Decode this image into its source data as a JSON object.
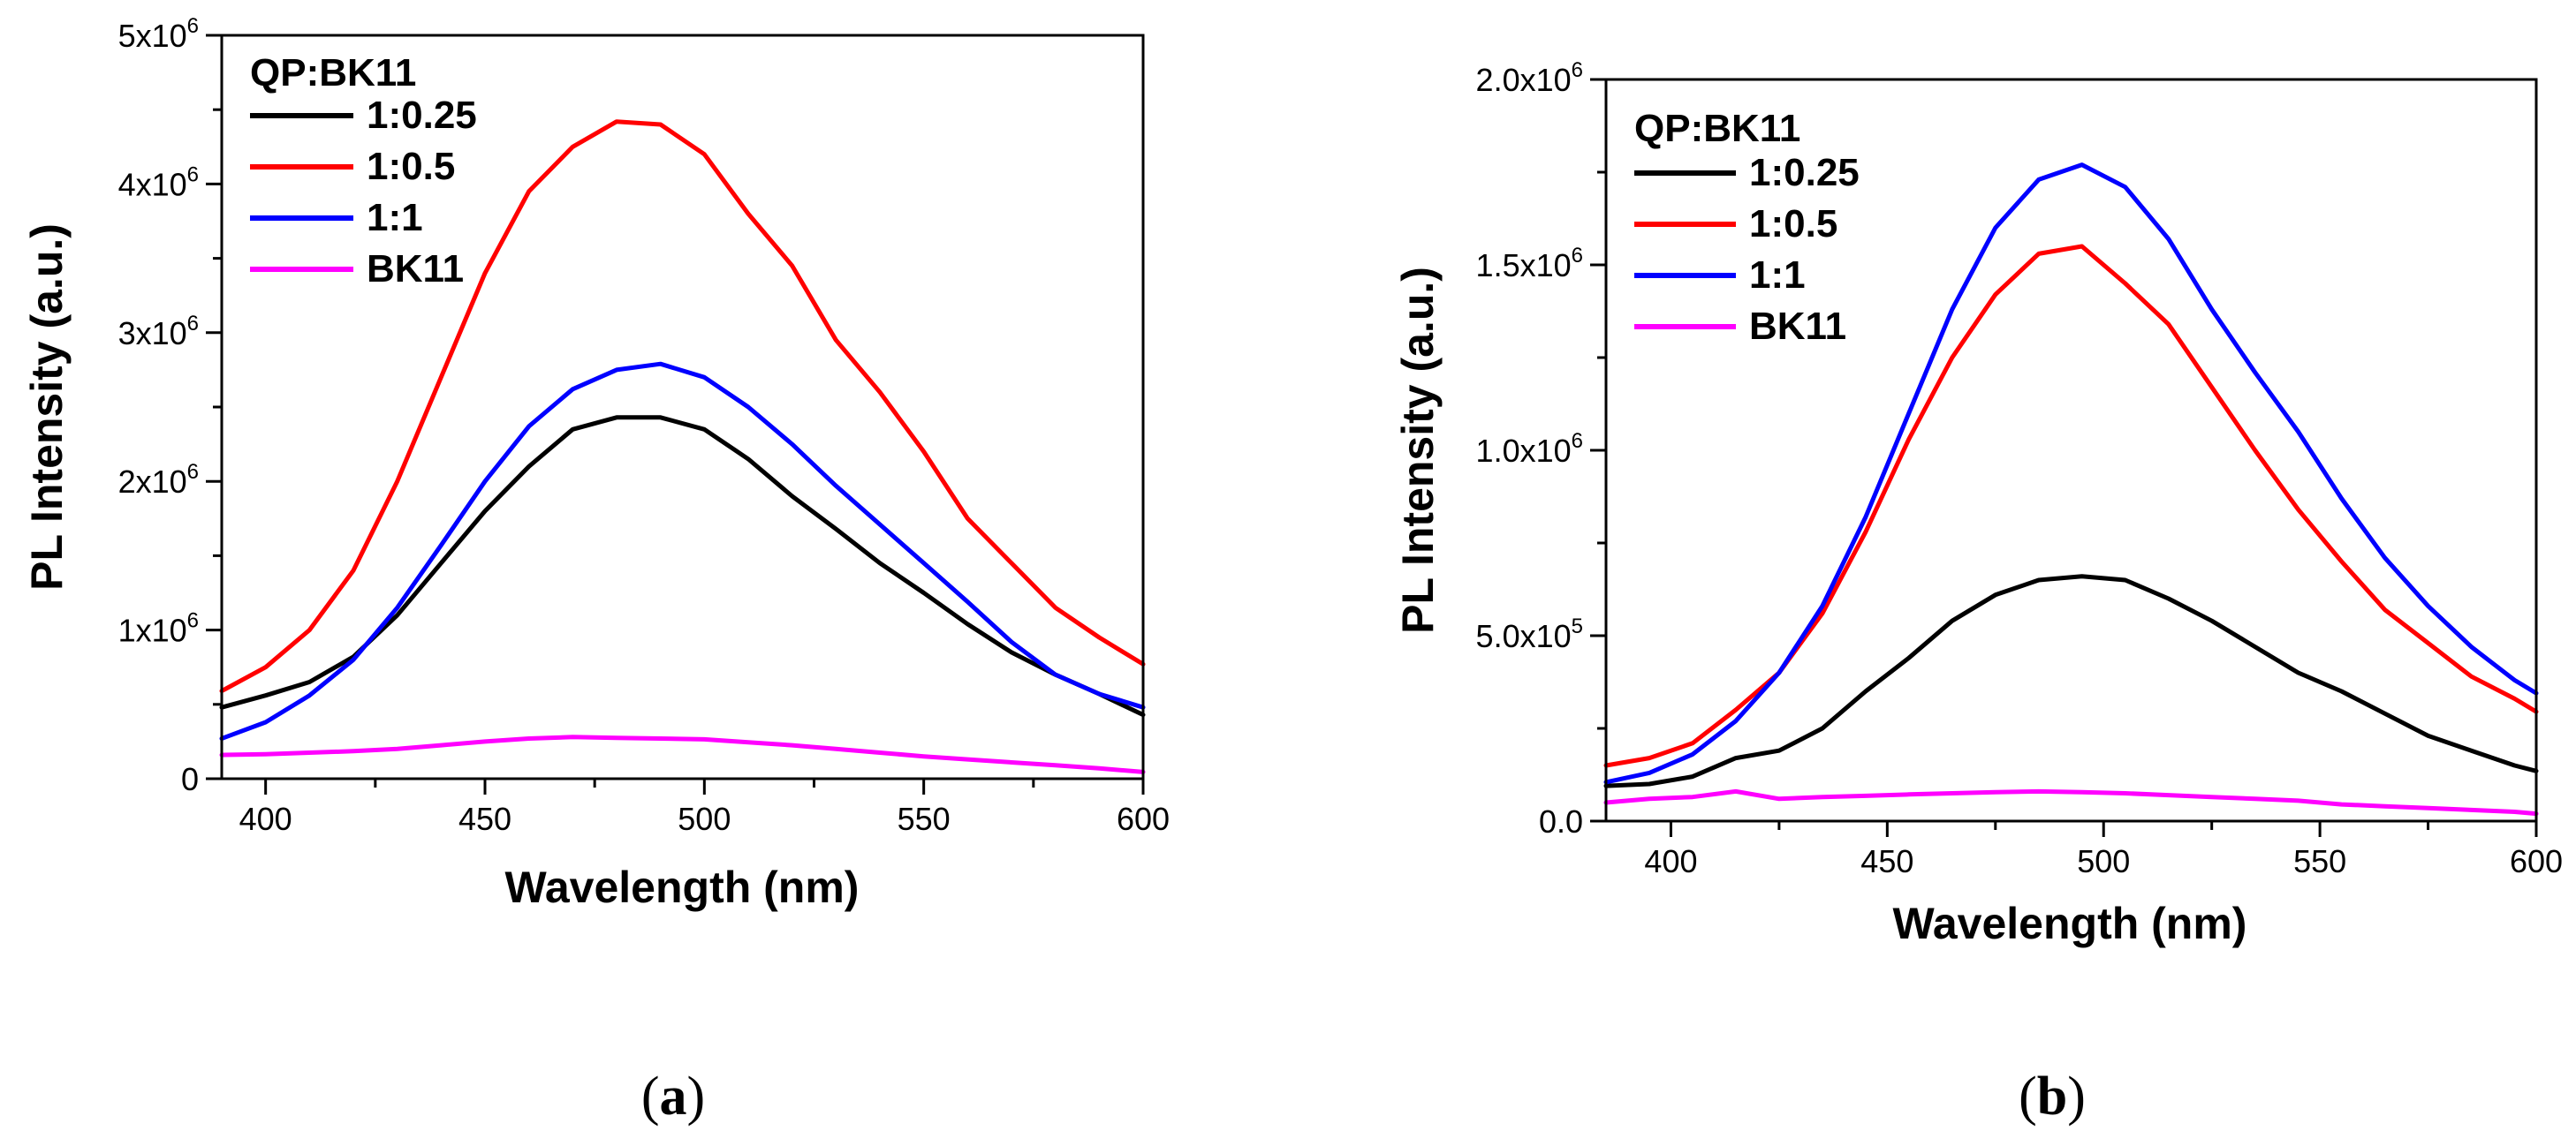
{
  "chart_data": [
    {
      "panel": "a",
      "caption_letter": "a",
      "type": "line",
      "xlabel": "Wavelength (nm)",
      "ylabel": "PL Intensity (a.u.)",
      "xlim": [
        390,
        600
      ],
      "ylim": [
        0,
        5000000
      ],
      "xticks": [
        400,
        450,
        500,
        550,
        600
      ],
      "yticks": [
        0,
        1000000,
        2000000,
        3000000,
        4000000,
        5000000
      ],
      "ytick_labels": [
        {
          "mant": "0",
          "exp": ""
        },
        {
          "mant": "1x10",
          "exp": "6"
        },
        {
          "mant": "2x10",
          "exp": "6"
        },
        {
          "mant": "3x10",
          "exp": "6"
        },
        {
          "mant": "4x10",
          "exp": "6"
        },
        {
          "mant": "5x10",
          "exp": "6"
        }
      ],
      "legend_title": "QP:BK11",
      "legend_position": "top-left",
      "series": [
        {
          "name": "1:0.25",
          "color": "#000000",
          "x": [
            390,
            400,
            410,
            420,
            430,
            440,
            450,
            460,
            470,
            480,
            490,
            500,
            510,
            520,
            530,
            540,
            550,
            560,
            570,
            580,
            590,
            600
          ],
          "y": [
            480000,
            560000,
            650000,
            820000,
            1100000,
            1450000,
            1800000,
            2100000,
            2350000,
            2430000,
            2430000,
            2350000,
            2150000,
            1900000,
            1680000,
            1450000,
            1250000,
            1040000,
            850000,
            700000,
            570000,
            430000
          ]
        },
        {
          "name": "1:0.5",
          "color": "#ff0000",
          "x": [
            390,
            400,
            410,
            420,
            430,
            440,
            450,
            460,
            470,
            480,
            490,
            500,
            510,
            520,
            530,
            540,
            550,
            560,
            570,
            580,
            590,
            600
          ],
          "y": [
            590000,
            750000,
            1000000,
            1400000,
            2000000,
            2700000,
            3400000,
            3950000,
            4250000,
            4420000,
            4400000,
            4200000,
            3800000,
            3450000,
            2950000,
            2600000,
            2200000,
            1750000,
            1450000,
            1150000,
            950000,
            770000
          ]
        },
        {
          "name": "1:1",
          "color": "#0000ff",
          "x": [
            390,
            400,
            410,
            420,
            430,
            440,
            450,
            460,
            470,
            480,
            490,
            500,
            510,
            520,
            530,
            540,
            550,
            560,
            570,
            580,
            590,
            600
          ],
          "y": [
            270000,
            380000,
            560000,
            800000,
            1150000,
            1570000,
            2000000,
            2370000,
            2620000,
            2750000,
            2790000,
            2700000,
            2500000,
            2250000,
            1970000,
            1710000,
            1450000,
            1190000,
            920000,
            700000,
            570000,
            480000
          ]
        },
        {
          "name": "BK11",
          "color": "#ff00ff",
          "x": [
            390,
            400,
            410,
            420,
            430,
            440,
            450,
            460,
            470,
            480,
            490,
            500,
            510,
            520,
            530,
            540,
            550,
            560,
            570,
            580,
            590,
            600
          ],
          "y": [
            160000,
            165000,
            175000,
            185000,
            200000,
            225000,
            250000,
            270000,
            280000,
            275000,
            270000,
            265000,
            245000,
            225000,
            200000,
            175000,
            150000,
            130000,
            110000,
            90000,
            70000,
            45000
          ]
        }
      ]
    },
    {
      "panel": "b",
      "caption_letter": "b",
      "type": "line",
      "xlabel": "Wavelength (nm)",
      "ylabel": "PL Intensity (a.u.)",
      "xlim": [
        385,
        600
      ],
      "ylim": [
        0,
        2000000
      ],
      "xticks": [
        400,
        450,
        500,
        550,
        600
      ],
      "yticks": [
        0,
        500000,
        1000000,
        1500000,
        2000000
      ],
      "ytick_labels": [
        {
          "mant": "0.0",
          "exp": ""
        },
        {
          "mant": "5.0x10",
          "exp": "5"
        },
        {
          "mant": "1.0x10",
          "exp": "6"
        },
        {
          "mant": "1.5x10",
          "exp": "6"
        },
        {
          "mant": "2.0x10",
          "exp": "6"
        }
      ],
      "legend_title": "QP:BK11",
      "legend_position": "top-left",
      "series": [
        {
          "name": "1:0.25",
          "color": "#000000",
          "x": [
            385,
            395,
            405,
            415,
            425,
            435,
            445,
            455,
            465,
            475,
            485,
            495,
            505,
            515,
            525,
            535,
            545,
            555,
            565,
            575,
            585,
            595,
            600
          ],
          "y": [
            95000,
            100000,
            120000,
            170000,
            190000,
            250000,
            350000,
            440000,
            540000,
            610000,
            650000,
            660000,
            650000,
            600000,
            540000,
            470000,
            400000,
            350000,
            290000,
            230000,
            190000,
            150000,
            135000
          ]
        },
        {
          "name": "1:0.5",
          "color": "#ff0000",
          "x": [
            385,
            395,
            405,
            415,
            425,
            435,
            445,
            455,
            465,
            475,
            485,
            495,
            505,
            515,
            525,
            535,
            545,
            555,
            565,
            575,
            585,
            595,
            600
          ],
          "y": [
            150000,
            170000,
            210000,
            300000,
            400000,
            560000,
            780000,
            1030000,
            1250000,
            1420000,
            1530000,
            1550000,
            1450000,
            1340000,
            1170000,
            1000000,
            840000,
            700000,
            570000,
            480000,
            390000,
            330000,
            295000
          ]
        },
        {
          "name": "1:1",
          "color": "#0000ff",
          "x": [
            385,
            395,
            405,
            415,
            425,
            435,
            445,
            455,
            465,
            475,
            485,
            495,
            505,
            515,
            525,
            535,
            545,
            555,
            565,
            575,
            585,
            595,
            600
          ],
          "y": [
            105000,
            130000,
            180000,
            270000,
            400000,
            580000,
            820000,
            1100000,
            1380000,
            1600000,
            1730000,
            1770000,
            1710000,
            1570000,
            1380000,
            1210000,
            1050000,
            870000,
            710000,
            580000,
            470000,
            380000,
            345000
          ]
        },
        {
          "name": "BK11",
          "color": "#ff00ff",
          "x": [
            385,
            395,
            405,
            415,
            425,
            435,
            445,
            455,
            465,
            475,
            485,
            495,
            505,
            515,
            525,
            535,
            545,
            555,
            565,
            575,
            585,
            595,
            600
          ],
          "y": [
            50000,
            60000,
            65000,
            80000,
            60000,
            65000,
            68000,
            72000,
            75000,
            78000,
            80000,
            78000,
            75000,
            70000,
            65000,
            60000,
            55000,
            45000,
            40000,
            35000,
            30000,
            25000,
            20000
          ]
        }
      ]
    }
  ]
}
